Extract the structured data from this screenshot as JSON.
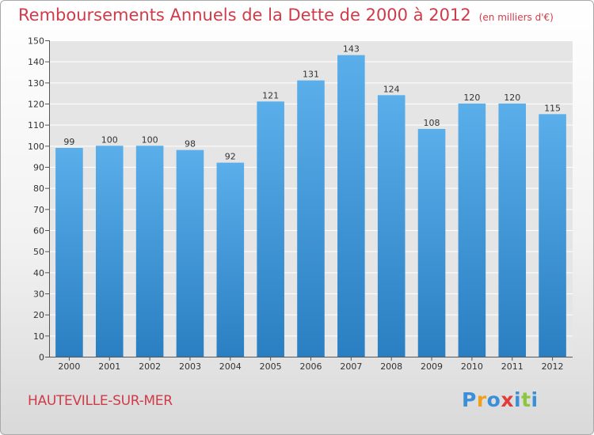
{
  "title": "Remboursements Annuels de la Dette de 2000 à 2012",
  "subtitle": "(en milliers d'€)",
  "location": "HAUTEVILLE-SUR-MER",
  "logo": {
    "letters": [
      "P",
      "r",
      "o",
      "x",
      "i",
      "t",
      "i"
    ],
    "colors": [
      "#3a8fd8",
      "#f0a020",
      "#3a8fd8",
      "#e03c3c",
      "#3a8fd8",
      "#8cc63f",
      "#3a8fd8"
    ]
  },
  "colors": {
    "title": "#cf3b49",
    "bar_top": "#5aaeea",
    "bar_bottom": "#2a7fc2"
  },
  "chart_data": {
    "type": "bar",
    "categories": [
      "2000",
      "2001",
      "2002",
      "2003",
      "2004",
      "2005",
      "2006",
      "2007",
      "2008",
      "2009",
      "2010",
      "2011",
      "2012"
    ],
    "values": [
      99,
      100,
      100,
      98,
      92,
      121,
      131,
      143,
      124,
      108,
      120,
      120,
      115
    ],
    "ylim": [
      0,
      150
    ],
    "yticks": [
      0,
      10,
      20,
      30,
      40,
      50,
      60,
      70,
      80,
      90,
      100,
      110,
      120,
      130,
      140,
      150
    ],
    "grid": true
  }
}
